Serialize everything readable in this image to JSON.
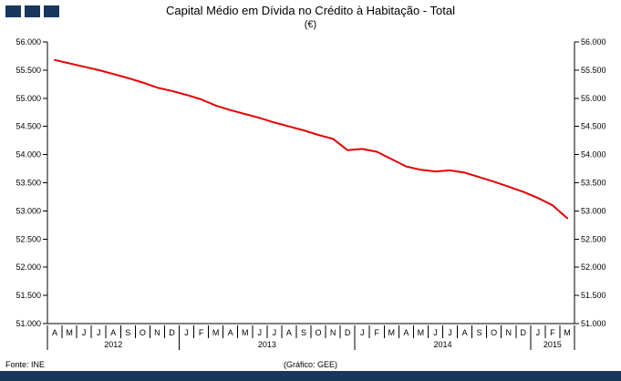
{
  "colors": {
    "navy": "#17375E",
    "line_red": "#E60000",
    "axis": "#000000"
  },
  "logo": {
    "squares": [
      "square",
      "square",
      "square"
    ]
  },
  "title": {
    "line1": "Capital Médio em Dívida no Crédito à Habitação - Total",
    "line2": "(€)"
  },
  "footer": {
    "source": "Fonte: INE",
    "credit": "(Gráfico: GEE)"
  },
  "chart_data": {
    "type": "line",
    "title": "Capital Médio em Dívida no Crédito à Habitação - Total (€)",
    "grid": false,
    "ylim": [
      51000,
      56000
    ],
    "ytick_step": 500,
    "ytick_labels": [
      "51.000",
      "51.500",
      "52.000",
      "52.500",
      "53.000",
      "53.500",
      "54.000",
      "54.500",
      "55.000",
      "55.500",
      "56.000"
    ],
    "x_months": [
      "A",
      "M",
      "J",
      "J",
      "A",
      "S",
      "O",
      "N",
      "D",
      "J",
      "F",
      "M",
      "A",
      "M",
      "J",
      "J",
      "A",
      "S",
      "O",
      "N",
      "D",
      "J",
      "F",
      "M",
      "A",
      "M",
      "J",
      "J",
      "A",
      "S",
      "O",
      "N",
      "D",
      "J",
      "F",
      "M"
    ],
    "year_groups": [
      {
        "label": "2012",
        "start": 0,
        "end": 8
      },
      {
        "label": "2013",
        "start": 9,
        "end": 20
      },
      {
        "label": "2014",
        "start": 21,
        "end": 32
      },
      {
        "label": "2015",
        "start": 33,
        "end": 35
      }
    ],
    "year_breaks": [
      0,
      9,
      21,
      33,
      36
    ],
    "series": [
      {
        "name": "Capital médio em dívida (€)",
        "color": "#E60000",
        "values": [
          55680,
          55620,
          55560,
          55500,
          55430,
          55360,
          55280,
          55190,
          55130,
          55060,
          54980,
          54870,
          54790,
          54720,
          54650,
          54570,
          54500,
          54430,
          54350,
          54280,
          54080,
          54100,
          54050,
          53920,
          53790,
          53730,
          53700,
          53720,
          53680,
          53600,
          53520,
          53430,
          53340,
          53230,
          53100,
          52870
        ]
      }
    ]
  }
}
